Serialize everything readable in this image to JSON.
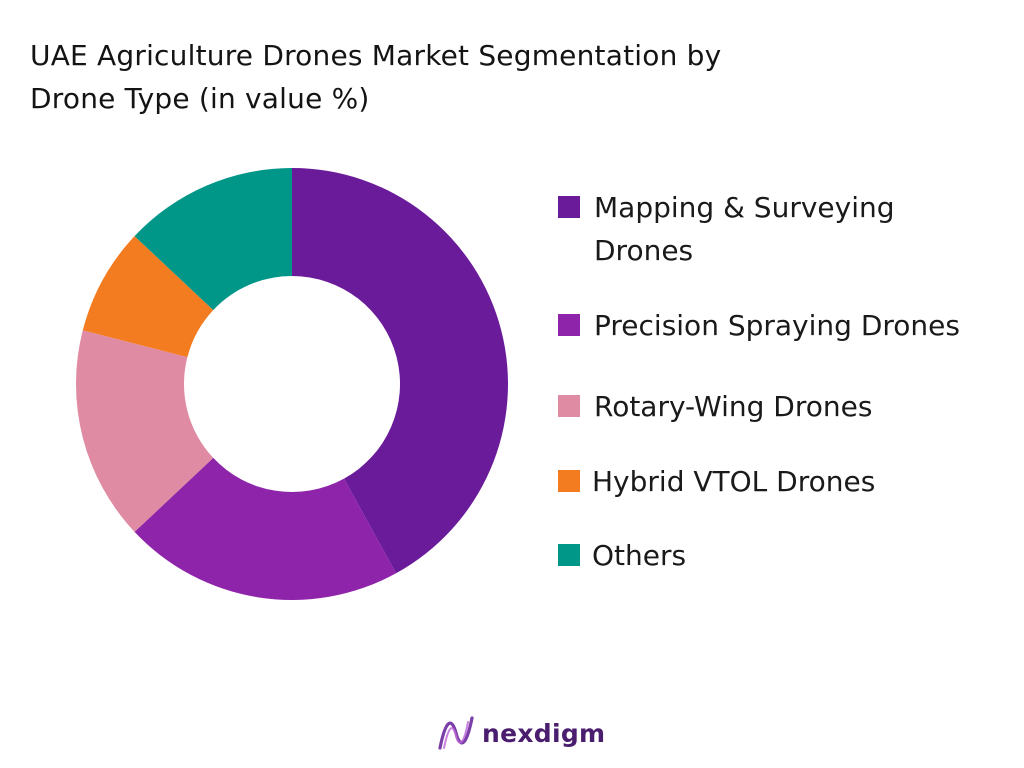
{
  "title_lines": [
    "UAE Agriculture Drones Market Segmentation by",
    "Drone Type (in value %)"
  ],
  "chart_data": {
    "type": "pie",
    "variant": "donut",
    "title": "UAE Agriculture Drones Market Segmentation by Drone Type (in value %)",
    "unit": "%",
    "categories": [
      "Mapping & Surveying Drones",
      "Precision Spraying Drones",
      "Rotary-Wing Drones",
      "Hybrid VTOL Drones",
      "Others"
    ],
    "values": [
      42,
      21,
      16,
      8,
      13
    ],
    "colors": [
      "#6a1b9a",
      "#8e24aa",
      "#df8ba3",
      "#f47c20",
      "#009688"
    ],
    "legend_position": "right",
    "legend": [
      {
        "label": "Mapping & Surveying Drones",
        "color": "#6a1b9a"
      },
      {
        "label": "Precision Spraying Drones",
        "color": "#8e24aa"
      },
      {
        "label": "Rotary-Wing Drones",
        "color": "#df8ba3"
      },
      {
        "label": "Hybrid VTOL Drones",
        "color": "#f47c20"
      },
      {
        "label": "Others",
        "color": "#009688"
      }
    ]
  },
  "brand": {
    "name": "nexdigm",
    "logo_icon": "nexdigm-logo-icon",
    "color": "#4a1d6e"
  }
}
